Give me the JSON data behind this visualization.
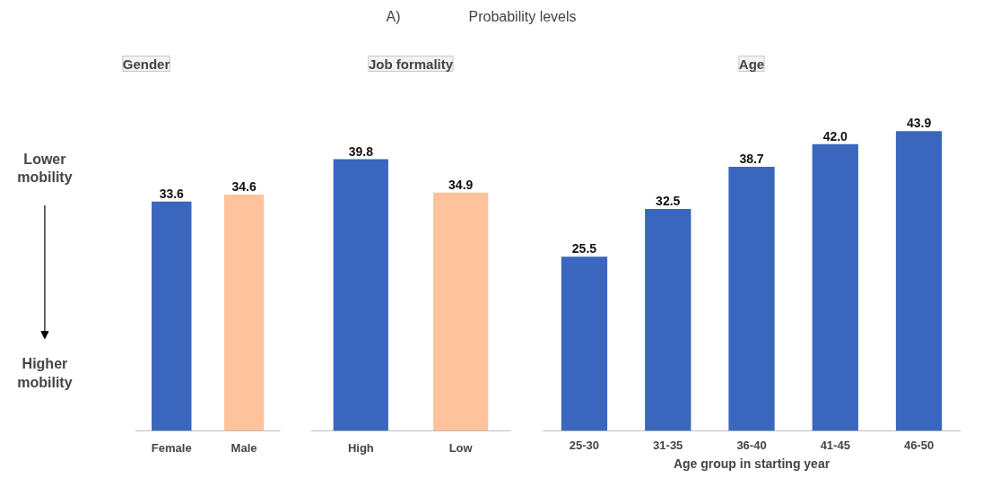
{
  "chart_data": [
    {
      "type": "bar",
      "title": "Gender",
      "categories": [
        "Female",
        "Male"
      ],
      "values": [
        33.6,
        34.6
      ],
      "colors": [
        "#3a66be",
        "#fec39c"
      ],
      "data_labels": true,
      "annotations": [
        "A)",
        "Probability levels",
        "Lower mobility",
        "Higher mobility"
      ]
    },
    {
      "type": "bar",
      "title": "Job formality",
      "categories": [
        "High",
        "Low"
      ],
      "values": [
        39.8,
        34.9
      ],
      "colors": [
        "#3a66be",
        "#fec39c"
      ],
      "data_labels": true
    },
    {
      "type": "bar",
      "title": "Age",
      "xlabel": "Age group in starting year",
      "categories": [
        "25-30",
        "31-35",
        "36-40",
        "41-45",
        "46-50"
      ],
      "values": [
        25.5,
        32.5,
        38.7,
        42.0,
        43.9
      ],
      "value_labels": [
        "25.5",
        "32.5",
        "38.7",
        "42.0",
        "43.9"
      ],
      "colors": [
        "#3a66be",
        "#3a66be",
        "#3a66be",
        "#3a66be",
        "#3a66be"
      ]
    }
  ]
}
